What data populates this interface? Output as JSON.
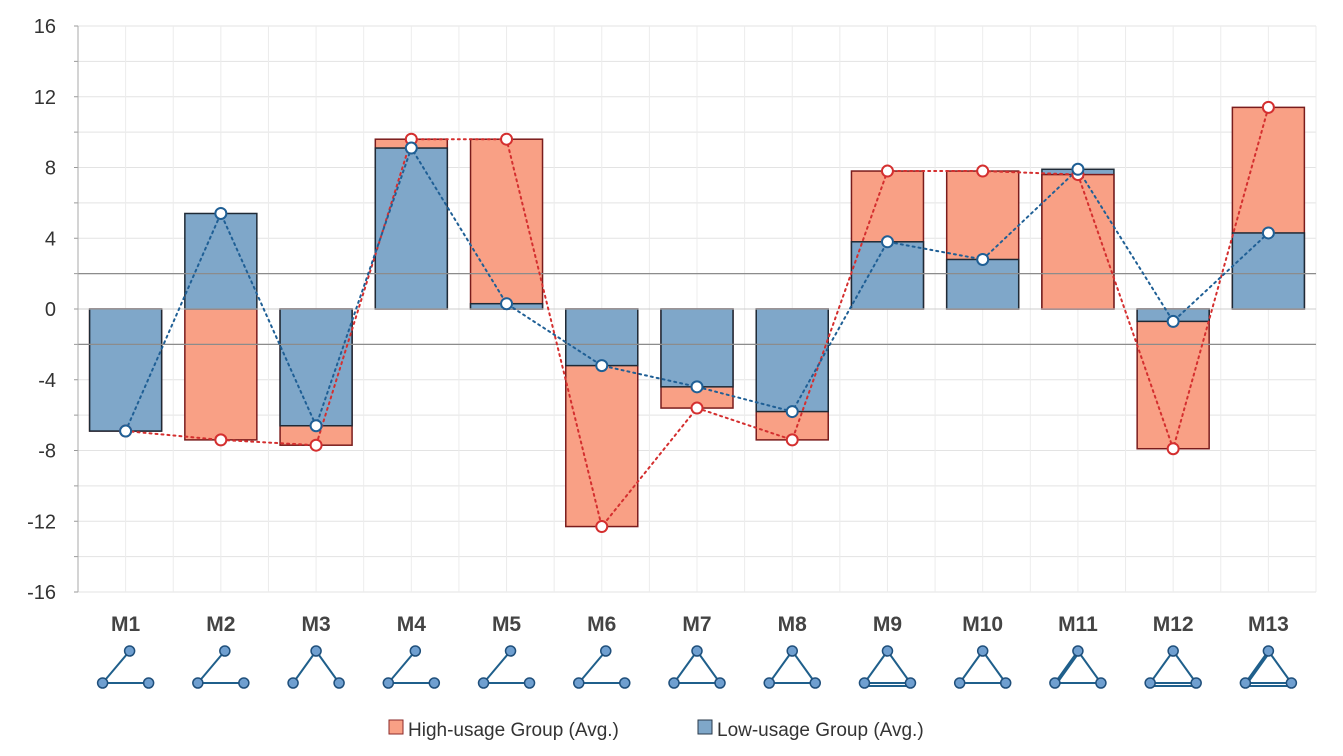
{
  "chart_data": {
    "type": "bar",
    "categories": [
      "M1",
      "M2",
      "M3",
      "M4",
      "M5",
      "M6",
      "M7",
      "M8",
      "M9",
      "M10",
      "M11",
      "M12",
      "M13"
    ],
    "series": [
      {
        "name": "High-usage Group (Avg.)",
        "color": "#f9a085",
        "marker_color": "#d42f2f",
        "values": [
          -6.9,
          -7.4,
          -7.7,
          9.6,
          9.6,
          -12.3,
          -5.6,
          -7.4,
          7.8,
          7.8,
          7.6,
          -7.9,
          11.4
        ]
      },
      {
        "name": "Low-usage Group (Avg.)",
        "color": "#7fa7c9",
        "marker_color": "#1f5f95",
        "values": [
          -6.9,
          5.4,
          -6.6,
          9.1,
          0.3,
          -3.2,
          -4.4,
          -5.8,
          3.8,
          2.8,
          7.9,
          -0.7,
          4.3
        ]
      }
    ],
    "ylim": [
      -16,
      16
    ],
    "yticks": [
      16,
      12,
      8,
      4,
      0,
      -4,
      -8,
      -12,
      -16
    ],
    "reference_lines": [
      2,
      -2
    ],
    "title": "",
    "xlabel": "",
    "ylabel": "",
    "grid": true,
    "legend_position": "bottom-center",
    "motif_icons": [
      "motif-1-icon",
      "motif-2-icon",
      "motif-3-icon",
      "motif-4-icon",
      "motif-5-icon",
      "motif-6-icon",
      "motif-7-icon",
      "motif-8-icon",
      "motif-9-icon",
      "motif-10-icon",
      "motif-11-icon",
      "motif-12-icon",
      "motif-13-icon"
    ]
  }
}
